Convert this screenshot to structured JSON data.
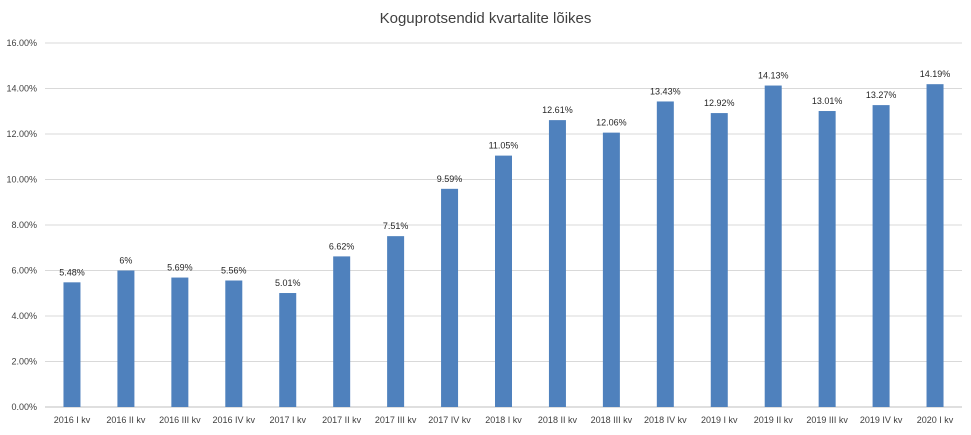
{
  "chart_data": {
    "type": "bar",
    "title": "Koguprotsendid kvartalite lõikes",
    "xlabel": "",
    "ylabel": "",
    "ylim": [
      0,
      16
    ],
    "yticks": [
      "0.00%",
      "2.00%",
      "4.00%",
      "6.00%",
      "8.00%",
      "10.00%",
      "12.00%",
      "14.00%",
      "16.00%"
    ],
    "grid": true,
    "bar_color": "#4F81BD",
    "categories": [
      "2016 I kv",
      "2016 II kv",
      "2016 III kv",
      "2016 IV kv",
      "2017 I kv",
      "2017 II kv",
      "2017 III kv",
      "2017 IV kv",
      "2018 I kv",
      "2018 II kv",
      "2018 III kv",
      "2018 IV kv",
      "2019 I kv",
      "2019 II kv",
      "2019 III kv",
      "2019 IV kv",
      "2020 I kv"
    ],
    "values": [
      5.48,
      6,
      5.69,
      5.56,
      5.01,
      6.62,
      7.51,
      9.59,
      11.05,
      12.61,
      12.06,
      13.43,
      12.92,
      14.13,
      13.01,
      13.27,
      14.19
    ],
    "data_labels": [
      "5.48%",
      "6%",
      "5.69%",
      "5.56%",
      "5.01%",
      "6.62%",
      "7.51%",
      "9.59%",
      "11.05%",
      "12.61%",
      "12.06%",
      "13.43%",
      "12.92%",
      "14.13%",
      "13.01%",
      "13.27%",
      "14.19%"
    ]
  }
}
